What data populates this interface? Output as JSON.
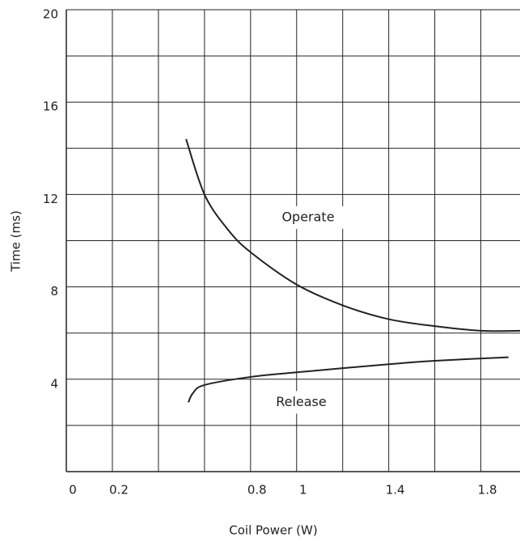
{
  "chart_data": {
    "type": "line",
    "xlabel": "Coil Power (W)",
    "ylabel": "Time (ms)",
    "xlim": [
      0,
      1.97
    ],
    "ylim": [
      0,
      20
    ],
    "xticks": [
      0,
      0.2,
      0.8,
      1.0,
      1.4,
      1.8
    ],
    "yticks": [
      4,
      8,
      12,
      16,
      20
    ],
    "xgrid": [
      0,
      0.2,
      0.4,
      0.6,
      0.8,
      1.0,
      1.2,
      1.4,
      1.6,
      1.8
    ],
    "ygrid": [
      0,
      2,
      4,
      6,
      8,
      10,
      12,
      14,
      16,
      18,
      20
    ],
    "grid": true,
    "annotations": [
      {
        "text": "Operate",
        "x": 1.05,
        "y": 11
      },
      {
        "text": "Release",
        "x": 1.02,
        "y": 3
      }
    ],
    "series": [
      {
        "name": "Operate",
        "color": "#222222",
        "x": [
          0.52,
          0.6,
          0.7,
          0.8,
          1.0,
          1.2,
          1.4,
          1.6,
          1.8,
          1.97
        ],
        "values": [
          14.4,
          12,
          10.5,
          9.5,
          8.1,
          7.2,
          6.6,
          6.3,
          6.1,
          6.1
        ]
      },
      {
        "name": "Release",
        "color": "#222222",
        "x": [
          0.53,
          0.55,
          0.6,
          0.8,
          1.0,
          1.4,
          1.6,
          1.92
        ],
        "values": [
          3.0,
          3.4,
          3.75,
          4.1,
          4.3,
          4.65,
          4.8,
          4.95
        ]
      }
    ]
  }
}
